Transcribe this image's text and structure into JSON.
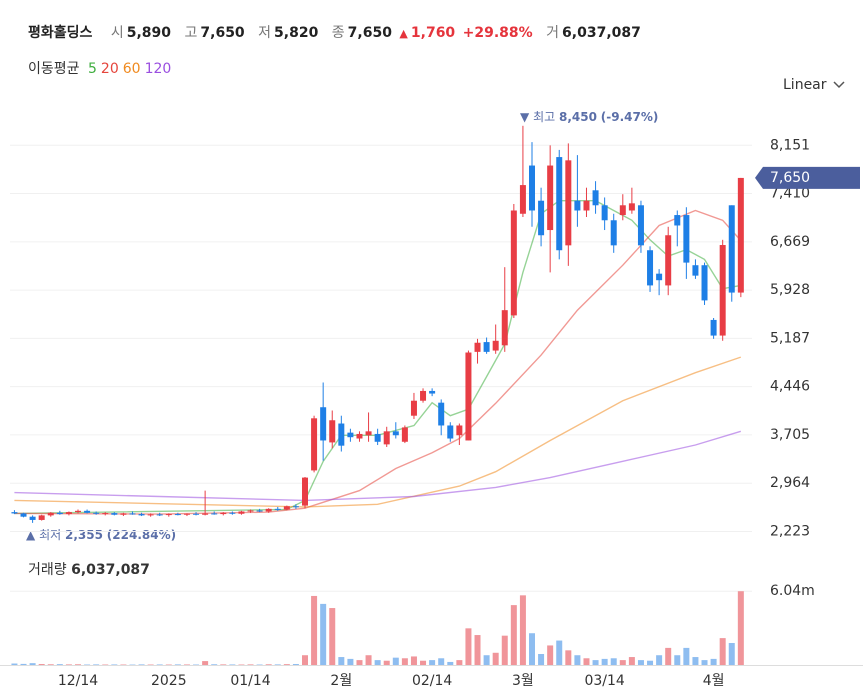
{
  "header": {
    "name": "평화홀딩스",
    "items": [
      {
        "label": "시",
        "value": "5,890"
      },
      {
        "label": "고",
        "value": "7,650"
      },
      {
        "label": "저",
        "value": "5,820"
      },
      {
        "label": "종",
        "value": "7,650"
      }
    ],
    "change_marker": "▲",
    "change": "1,760",
    "change_pct": "+29.88%",
    "volume_label": "거",
    "volume": "6,037,087"
  },
  "ma_legend": {
    "label": "이동평균"
  },
  "scale_menu": "Linear",
  "chart_data": {
    "type": "candlestick",
    "categories": [
      null,
      null,
      null,
      null,
      null,
      null,
      null,
      "12/14",
      null,
      null,
      null,
      null,
      null,
      null,
      null,
      null,
      null,
      "2025",
      null,
      null,
      null,
      null,
      null,
      null,
      null,
      null,
      "01/14",
      null,
      null,
      null,
      null,
      null,
      null,
      null,
      null,
      null,
      "2월",
      null,
      null,
      null,
      null,
      null,
      null,
      null,
      null,
      null,
      "02/14",
      null,
      null,
      null,
      null,
      null,
      null,
      null,
      null,
      null,
      "3월",
      null,
      null,
      null,
      null,
      null,
      null,
      null,
      null,
      "03/14",
      null,
      null,
      null,
      null,
      null,
      null,
      null,
      null,
      null,
      null,
      null,
      "4월",
      null,
      null,
      null
    ],
    "open": [
      2520,
      2500,
      2450,
      2400,
      2470,
      2510,
      2490,
      2520,
      2540,
      2510,
      2495,
      2505,
      2480,
      2500,
      2490,
      2470,
      2485,
      2475,
      2490,
      2480,
      2495,
      2480,
      2500,
      2490,
      2510,
      2495,
      2530,
      2545,
      2530,
      2570,
      2560,
      2610,
      2620,
      3160,
      4130,
      3590,
      3880,
      3740,
      3650,
      3700,
      3720,
      3560,
      3760,
      3600,
      4000,
      4230,
      4380,
      4200,
      3850,
      3700,
      3620,
      4980,
      5130,
      5000,
      5080,
      5540,
      7100,
      7840,
      7300,
      6850,
      7970,
      6615,
      7300,
      7150,
      7460,
      7230,
      7000,
      7080,
      7150,
      7230,
      6540,
      6180,
      6000,
      7080,
      7080,
      6310,
      6310,
      5470,
      5230,
      7230,
      5890
    ],
    "high": [
      2550,
      2510,
      2470,
      2480,
      2520,
      2540,
      2530,
      2560,
      2560,
      2530,
      2520,
      2520,
      2510,
      2530,
      2510,
      2500,
      2510,
      2500,
      2510,
      2500,
      2520,
      2850,
      2530,
      2520,
      2530,
      2540,
      2560,
      2570,
      2580,
      2600,
      2620,
      2640,
      3060,
      4000,
      4510,
      4080,
      4000,
      3800,
      3760,
      4050,
      3800,
      3830,
      3900,
      3850,
      4350,
      4420,
      4420,
      4250,
      3900,
      3880,
      5000,
      5180,
      5200,
      5400,
      6280,
      7250,
      8450,
      8200,
      7500,
      8150,
      8080,
      8180,
      8000,
      7500,
      7600,
      7350,
      7100,
      7400,
      7500,
      7300,
      6600,
      6250,
      6900,
      7150,
      7200,
      6400,
      6350,
      5500,
      6700,
      7230,
      7650
    ],
    "low": [
      2490,
      2440,
      2355,
      2390,
      2450,
      2480,
      2470,
      2500,
      2500,
      2480,
      2470,
      2470,
      2460,
      2480,
      2460,
      2450,
      2460,
      2450,
      2470,
      2460,
      2470,
      2470,
      2480,
      2470,
      2480,
      2480,
      2510,
      2520,
      2510,
      2540,
      2550,
      2570,
      2580,
      3130,
      3310,
      3500,
      3450,
      3600,
      3600,
      3600,
      3550,
      3520,
      3650,
      3580,
      3950,
      4200,
      4300,
      3700,
      3600,
      3550,
      3620,
      4800,
      4950,
      4950,
      4980,
      5500,
      7050,
      6900,
      6600,
      6200,
      6400,
      6300,
      6900,
      7050,
      7100,
      6850,
      6500,
      7000,
      7100,
      6500,
      5900,
      5850,
      5850,
      6600,
      6100,
      6100,
      5700,
      5180,
      5150,
      5750,
      5820
    ],
    "close": [
      2500,
      2450,
      2400,
      2470,
      2510,
      2490,
      2520,
      2540,
      2510,
      2495,
      2505,
      2480,
      2500,
      2490,
      2470,
      2485,
      2475,
      2490,
      2480,
      2495,
      2480,
      2500,
      2490,
      2510,
      2495,
      2530,
      2545,
      2530,
      2570,
      2560,
      2610,
      2600,
      3050,
      3960,
      3620,
      3930,
      3540,
      3670,
      3720,
      3760,
      3600,
      3760,
      3700,
      3820,
      4230,
      4380,
      4340,
      3850,
      3650,
      3850,
      4970,
      5120,
      4980,
      5150,
      5620,
      7150,
      7540,
      7150,
      6770,
      7840,
      6540,
      7920,
      7150,
      7300,
      7230,
      7000,
      6615,
      7230,
      7260,
      6615,
      6000,
      6080,
      6770,
      6920,
      6350,
      6150,
      5770,
      5230,
      6620,
      5890,
      7650
    ],
    "up_color": "#e83d45",
    "down_color": "#1e7fe6",
    "ylim": [
      2000,
      8800
    ],
    "yticks": [
      {
        "value": 2223,
        "label": "2,223"
      },
      {
        "value": 2964,
        "label": "2,964"
      },
      {
        "value": 3705,
        "label": "3,705"
      },
      {
        "value": 4446,
        "label": "4,446"
      },
      {
        "value": 5187,
        "label": "5,187"
      },
      {
        "value": 5928,
        "label": "5,928"
      },
      {
        "value": 6669,
        "label": "6,669"
      },
      {
        "value": 7410,
        "label": "7,410"
      },
      {
        "value": 8151,
        "label": "8,151"
      }
    ],
    "grid": true,
    "moving_averages": [
      {
        "name": "5",
        "color": "#3fae3f",
        "x": [
          0,
          30,
          32,
          34,
          36,
          40,
          44,
          46,
          48,
          50,
          52,
          54,
          56,
          58,
          60,
          62,
          64,
          66,
          68,
          70,
          72,
          74,
          76,
          78,
          80
        ],
        "values": [
          2500,
          2560,
          2700,
          3300,
          3700,
          3700,
          3850,
          4200,
          4000,
          4100,
          4600,
          5100,
          6200,
          7100,
          7300,
          7300,
          7300,
          7150,
          7000,
          6700,
          6450,
          6550,
          6400,
          5950,
          6000
        ]
      },
      {
        "name": "20",
        "color": "#e5453c",
        "x": [
          0,
          16,
          28,
          32,
          38,
          42,
          46,
          49,
          53,
          58,
          62,
          67,
          71,
          75,
          78,
          80
        ],
        "values": [
          2500,
          2490,
          2520,
          2580,
          2850,
          3190,
          3430,
          3650,
          4190,
          4930,
          5620,
          6310,
          6920,
          7150,
          7000,
          6690
        ]
      },
      {
        "name": "60",
        "color": "#f08a1f",
        "x": [
          0,
          16,
          32,
          40,
          49,
          53,
          59,
          67,
          75,
          80
        ],
        "values": [
          2700,
          2650,
          2600,
          2640,
          2920,
          3140,
          3620,
          4230,
          4660,
          4900
        ]
      },
      {
        "name": "120",
        "color": "#9a4fe0",
        "x": [
          0,
          16,
          32,
          44,
          53,
          59,
          67,
          75,
          80
        ],
        "values": [
          2820,
          2760,
          2700,
          2760,
          2900,
          3050,
          3300,
          3550,
          3760
        ]
      }
    ],
    "annotations": {
      "high": {
        "marker": "▼",
        "label": "최고",
        "value": "8,450",
        "change": "(-9.47%)"
      },
      "low": {
        "marker": "▲",
        "label": "최저",
        "value": "2,355",
        "change": "(224.84%)"
      }
    },
    "last_price": {
      "value": 7650,
      "label": "7,650"
    },
    "volume": {
      "title": "거래량",
      "last": "6,037,087",
      "values": [
        120000,
        90000,
        150000,
        80000,
        60000,
        70000,
        50000,
        60000,
        40000,
        50000,
        40000,
        45000,
        40000,
        35000,
        50000,
        40000,
        45000,
        40000,
        50000,
        45000,
        40000,
        320000,
        60000,
        50000,
        45000,
        40000,
        50000,
        40000,
        60000,
        50000,
        70000,
        80000,
        800000,
        5650000,
        5000000,
        4660000,
        650000,
        500000,
        400000,
        800000,
        400000,
        350000,
        600000,
        550000,
        700000,
        350000,
        400000,
        550000,
        250000,
        400000,
        3000000,
        2450000,
        800000,
        1000000,
        2400000,
        4900000,
        5700000,
        2600000,
        900000,
        1600000,
        2000000,
        1200000,
        800000,
        550000,
        400000,
        500000,
        550000,
        400000,
        650000,
        400000,
        350000,
        800000,
        1400000,
        800000,
        1400000,
        650000,
        400000,
        500000,
        2200000,
        1800000,
        6037087
      ],
      "up_color": "#f0959a",
      "down_color": "#8ebdf0",
      "ylim": [
        0,
        9000000
      ],
      "yticks": [
        {
          "value": 6037087,
          "label": "6.04m"
        }
      ]
    }
  }
}
